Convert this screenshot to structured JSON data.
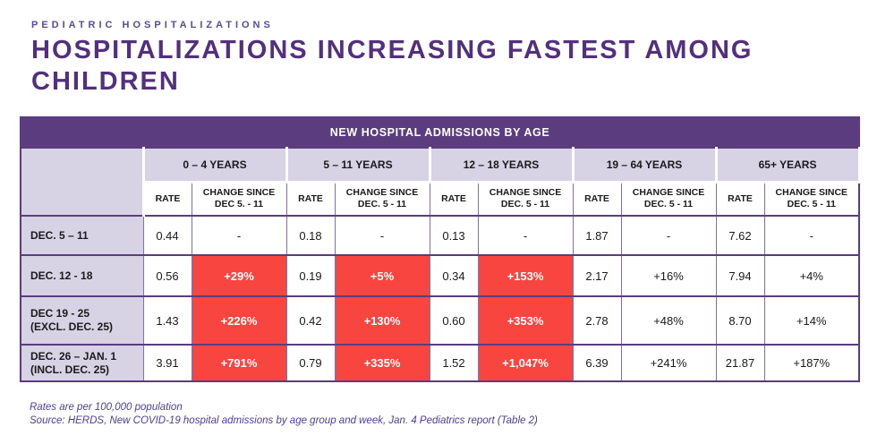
{
  "header": {
    "eyebrow": "PEDIATRIC HOSPITALIZATIONS",
    "title": "HOSPITALIZATIONS INCREASING FASTEST AMONG CHILDREN"
  },
  "table": {
    "title": "NEW HOSPITAL ADMISSIONS BY AGE",
    "groups": [
      {
        "label": "0 – 4 YEARS",
        "rate": "RATE",
        "change": "CHANGE SINCE DEC 5. - 11"
      },
      {
        "label": "5 – 11 YEARS",
        "rate": "RATE",
        "change": "CHANGE SINCE DEC. 5 - 11"
      },
      {
        "label": "12 – 18 YEARS",
        "rate": "RATE",
        "change": "CHANGE SINCE DEC. 5 - 11"
      },
      {
        "label": "19 – 64 YEARS",
        "rate": "RATE",
        "change": "CHANGE SINCE DEC. 5 - 11"
      },
      {
        "label": "65+ YEARS",
        "rate": "RATE",
        "change": "CHANGE SINCE DEC. 5 - 11"
      }
    ],
    "rows": [
      {
        "label": "DEC. 5 – 11",
        "label2": "",
        "cells": [
          "0.44",
          "-",
          "0.18",
          "-",
          "0.13",
          "-",
          "1.87",
          "-",
          "7.62",
          "-"
        ]
      },
      {
        "label": "DEC. 12 - 18",
        "label2": "",
        "cells": [
          "0.56",
          "+29%",
          "0.19",
          "+5%",
          "0.34",
          "+153%",
          "2.17",
          "+16%",
          "7.94",
          "+4%"
        ]
      },
      {
        "label": "DEC 19 - 25",
        "label2": "(EXCL. DEC. 25)",
        "cells": [
          "1.43",
          "+226%",
          "0.42",
          "+130%",
          "0.60",
          "+353%",
          "2.78",
          "+48%",
          "8.70",
          "+14%"
        ]
      },
      {
        "label": "DEC. 26 – JAN. 1",
        "label2": "(INCL. DEC. 25)",
        "cells": [
          "3.91",
          "+791%",
          "0.79",
          "+335%",
          "1.52",
          "+1,047%",
          "6.39",
          "+241%",
          "21.87",
          "+187%"
        ]
      }
    ]
  },
  "footnotes": {
    "line1": "Rates are per 100,000 population",
    "line2": "Source: HERDS, New COVID-19 hospital admissions by age group and week, Jan. 4 Pediatrics report (Table 2)"
  },
  "colors": {
    "header_bar_purple": "#5b3d7f",
    "title_purple": "#52307e",
    "lavender_cell": "#d7d2e4",
    "highlight_red": "#f9453f",
    "footnote_purple": "#4f3d98"
  },
  "chart_data": {
    "type": "table",
    "title": "NEW HOSPITAL ADMISSIONS BY AGE",
    "subtitle_eyebrow": "PEDIATRIC HOSPITALIZATIONS",
    "headline": "HOSPITALIZATIONS INCREASING FASTEST AMONG CHILDREN",
    "age_groups": [
      "0 – 4 YEARS",
      "5 – 11 YEARS",
      "12 – 18 YEARS",
      "19 – 64 YEARS",
      "65+ YEARS"
    ],
    "metrics_per_group": [
      "RATE",
      "CHANGE SINCE DEC. 5 - 11"
    ],
    "rows": [
      {
        "week": "Dec. 5 – 11",
        "rates": [
          0.44,
          0.18,
          0.13,
          1.87,
          7.62
        ],
        "change_pct": [
          null,
          null,
          null,
          null,
          null
        ]
      },
      {
        "week": "Dec. 12 - 18",
        "rates": [
          0.56,
          0.19,
          0.34,
          2.17,
          7.94
        ],
        "change_pct": [
          29,
          5,
          153,
          16,
          4
        ]
      },
      {
        "week": "Dec 19 - 25 (excl. Dec. 25)",
        "rates": [
          1.43,
          0.42,
          0.6,
          2.78,
          8.7
        ],
        "change_pct": [
          226,
          130,
          353,
          48,
          14
        ]
      },
      {
        "week": "Dec. 26 – Jan. 1 (incl. Dec. 25)",
        "rates": [
          3.91,
          0.79,
          1.52,
          6.39,
          21.87
        ],
        "change_pct": [
          791,
          335,
          1047,
          241,
          187
        ]
      }
    ],
    "highlighted_red_groups": [
      "0 – 4 YEARS",
      "5 – 11 YEARS",
      "12 – 18 YEARS"
    ],
    "units": "Rates are per 100,000 population"
  }
}
